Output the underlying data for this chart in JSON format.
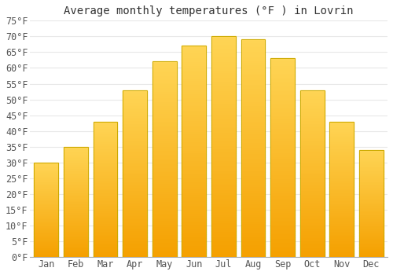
{
  "title": "Average monthly temperatures (°F ) in Lovrin",
  "months": [
    "Jan",
    "Feb",
    "Mar",
    "Apr",
    "May",
    "Jun",
    "Jul",
    "Aug",
    "Sep",
    "Oct",
    "Nov",
    "Dec"
  ],
  "values": [
    30,
    35,
    43,
    53,
    62,
    67,
    70,
    69,
    63,
    53,
    43,
    34
  ],
  "bar_color_top": "#FFD555",
  "bar_color_bottom": "#F5A800",
  "bar_edge_color": "#ccaa00",
  "background_color": "#ffffff",
  "grid_color": "#e8e8e8",
  "ylim": [
    0,
    75
  ],
  "yticks": [
    0,
    5,
    10,
    15,
    20,
    25,
    30,
    35,
    40,
    45,
    50,
    55,
    60,
    65,
    70,
    75
  ],
  "title_fontsize": 10,
  "tick_fontsize": 8.5,
  "bar_width": 0.82
}
